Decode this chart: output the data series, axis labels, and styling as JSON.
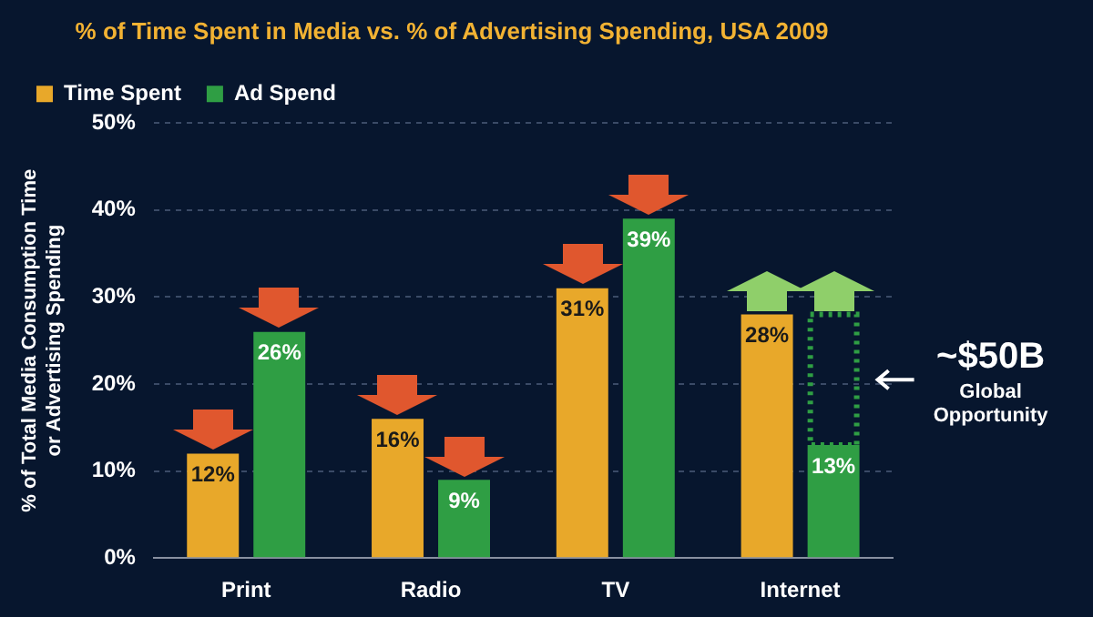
{
  "chart_data": {
    "type": "bar",
    "title": "% of Time Spent in Media vs. % of Advertising Spending, USA 2009",
    "ylabel": "% of Total Media Consumption Time\nor Advertising Spending",
    "categories": [
      "Print",
      "Radio",
      "TV",
      "Internet"
    ],
    "series": [
      {
        "name": "Time Spent",
        "color": "#e8a82a",
        "values": [
          12,
          16,
          31,
          28
        ]
      },
      {
        "name": "Ad Spend",
        "color": "#2f9e44",
        "values": [
          26,
          9,
          39,
          13
        ]
      }
    ],
    "ylim": [
      0,
      50
    ],
    "yticks": [
      {
        "value": 0,
        "label": "0%"
      },
      {
        "value": 10,
        "label": "10%"
      },
      {
        "value": 20,
        "label": "20%"
      },
      {
        "value": 30,
        "label": "30%"
      },
      {
        "value": 40,
        "label": "40%"
      },
      {
        "value": 50,
        "label": "50%"
      }
    ],
    "grid": "y",
    "legend": "top left",
    "value_labels": [
      [
        "12%",
        "16%",
        "31%",
        "28%"
      ],
      [
        "26%",
        "9%",
        "39%",
        "13%"
      ]
    ],
    "annotations": [
      "~$50B Global Opportunity"
    ]
  }
}
